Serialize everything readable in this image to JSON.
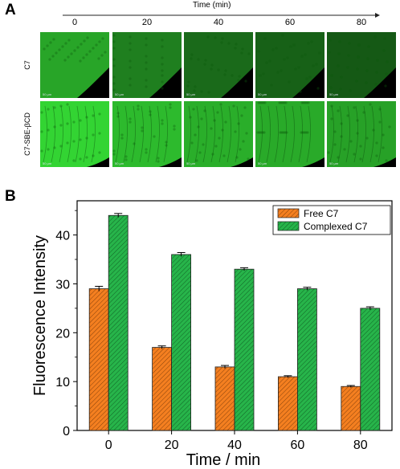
{
  "panel_a": {
    "letter": "A",
    "time_axis_label": "Time (min)",
    "columns": [
      "0",
      "20",
      "40",
      "60",
      "80"
    ],
    "rows": [
      {
        "label": "C7",
        "brightness": [
          0.78,
          0.6,
          0.5,
          0.46,
          0.42
        ],
        "style": "diffuse"
      },
      {
        "label": "C7-SBE-βCD",
        "brightness": [
          1.0,
          0.88,
          0.82,
          0.8,
          0.76
        ],
        "style": "striated"
      }
    ],
    "scale_bar_text": "50 µm",
    "colors": {
      "fluorescence": "#33d433",
      "background": "#000000"
    }
  },
  "panel_b": {
    "letter": "B",
    "chart_data": {
      "type": "bar",
      "categories": [
        "0",
        "20",
        "40",
        "60",
        "80"
      ],
      "series": [
        {
          "name": "Free C7",
          "values": [
            29,
            17,
            13,
            11,
            9
          ],
          "errors": [
            0.5,
            0.3,
            0.3,
            0.2,
            0.2
          ],
          "color": "#f47f20"
        },
        {
          "name": "Complexed C7",
          "values": [
            44,
            36,
            33,
            29,
            25
          ],
          "errors": [
            0.4,
            0.4,
            0.3,
            0.3,
            0.3
          ],
          "color": "#27b44a"
        }
      ],
      "xlabel": "Time / min",
      "ylabel": "Fluorescence Intensity",
      "ylim": [
        0,
        47
      ],
      "yticks": [
        0,
        10,
        20,
        30,
        40
      ],
      "grid": false,
      "legend_position": "top-right",
      "hatch": "diagonal"
    }
  }
}
